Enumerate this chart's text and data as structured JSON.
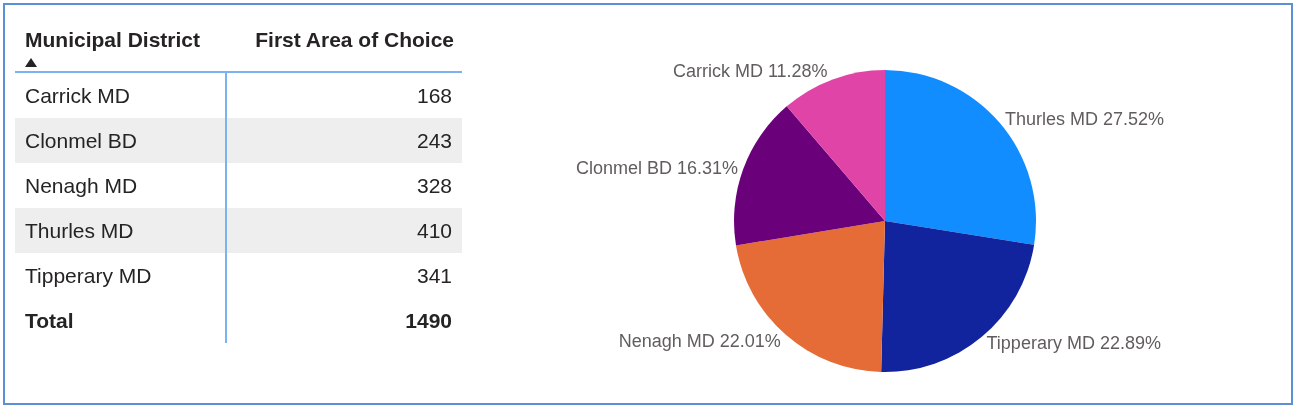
{
  "chart_data": [
    {
      "type": "other",
      "categories": [
        "Carrick MD",
        "Clonmel BD",
        "Nenagh MD",
        "Thurles MD",
        "Tipperary MD"
      ],
      "values": [
        168,
        243,
        328,
        410,
        341
      ],
      "data_labels": true,
      "totals": [
        "1490"
      ],
      "annotations": [
        "Municipal District",
        "First Area of Choice",
        "Total"
      ]
    },
    {
      "type": "pie",
      "categories": [
        "Carrick MD",
        "Clonmel BD",
        "Nenagh MD",
        "Thurles MD",
        "Tipperary MD"
      ],
      "values": [
        11.28,
        16.31,
        22.01,
        27.52,
        22.89
      ],
      "colors": [
        "#e044a7",
        "#6b007b",
        "#e66c37",
        "#118dff",
        "#12239e"
      ],
      "value_labels": [
        "11.28%",
        "16.31%",
        "22.01%",
        "27.52%",
        "22.89%"
      ],
      "legend": false
    }
  ]
}
